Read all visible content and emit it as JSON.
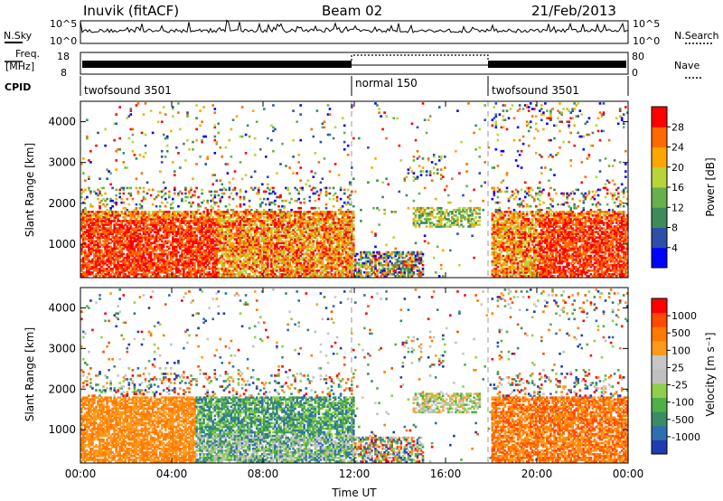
{
  "header": {
    "station": "Inuvik (fitACF)",
    "beam": "Beam 02",
    "date": "21/Feb/2013"
  },
  "status_panel": {
    "nsky_label": "N.Sky",
    "nsky_ticks": [
      "10^5",
      "10^0"
    ],
    "nsearch_label": "N.Search",
    "nsearch_ticks": [
      "10^5",
      "10^0"
    ],
    "freq_label_1": "Freq.",
    "freq_label_2": "[MHz]",
    "freq_ticks": [
      "18",
      "8"
    ],
    "nave_label": "Nave",
    "nave_ticks": [
      "80",
      "0"
    ],
    "cpid_label": "CPID",
    "cpid_segments": [
      {
        "label": "twofsound 3501",
        "start_h": 0,
        "end_h": 12
      },
      {
        "label": "normal 150",
        "start_h": 12,
        "end_h": 18
      },
      {
        "label": "twofsound 3501",
        "start_h": 18,
        "end_h": 24
      }
    ]
  },
  "colors": {
    "power_scale": [
      "#0000ff",
      "#2d4fa8",
      "#3d8a5a",
      "#67b04c",
      "#b5d53a",
      "#ffa500",
      "#ff6a00",
      "#ff0000"
    ],
    "velocity_scale": [
      "#1f3cb0",
      "#2e6fb0",
      "#3b8c66",
      "#4fb04a",
      "#8fd04a",
      "#c0c0c0",
      "#c7c7c7",
      "#ff9a1e",
      "#ff7a00",
      "#ff4a00",
      "#ff0000"
    ],
    "frame": "#000000",
    "divider": "#999999"
  },
  "chart_data": [
    {
      "type": "heatmap",
      "name": "power",
      "ylabel": "Slant Range [km]",
      "colorbar_label": "Power [dB]",
      "colorbar_ticks": [
        "28",
        "24",
        "20",
        "16",
        "12",
        "8",
        "4"
      ],
      "ylim": [
        180,
        4500
      ],
      "yticks": [
        "4000",
        "3000",
        "2000",
        "1000"
      ],
      "xlim": [
        0,
        24
      ],
      "xticks": [
        "00:00",
        "04:00",
        "08:00",
        "12:00",
        "16:00",
        "20:00",
        "00:00"
      ]
    },
    {
      "type": "heatmap",
      "name": "velocity",
      "ylabel": "Slant Range [km]",
      "colorbar_label": "Velocity [m s⁻¹]",
      "colorbar_ticks": [
        "1000",
        "500",
        "100",
        "25",
        "-25",
        "-100",
        "-500",
        "-1000"
      ],
      "ylim": [
        180,
        4500
      ],
      "yticks": [
        "4000",
        "3000",
        "2000",
        "1000"
      ],
      "xlim": [
        0,
        24
      ],
      "xticks": [
        "00:00",
        "04:00",
        "08:00",
        "12:00",
        "16:00",
        "20:00",
        "00:00"
      ],
      "xlabel": "Time UT"
    }
  ]
}
